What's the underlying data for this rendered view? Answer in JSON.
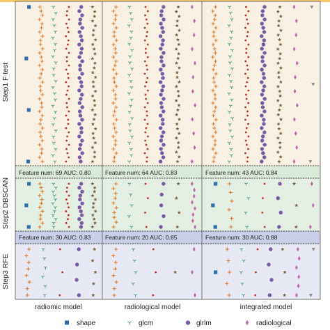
{
  "chart_data": {
    "type": "scatter",
    "layout": "3 steps x 3 models grid of feature strip plots",
    "columns": [
      "radiomic model",
      "radiological model",
      "integrated model"
    ],
    "rows": [
      {
        "label": "Step1  F test",
        "background": "#f8f0e3"
      },
      {
        "label": "Step2  DBSCAN",
        "background": "#e4efe3"
      },
      {
        "label": "Step3  RFE",
        "background": "#e6e8f3"
      }
    ],
    "summaries": [
      [
        "Feature num: 69 AUC: 0.80",
        "Feature num: 64 AUC: 0.83",
        "Feature num: 43 AUC: 0.84"
      ],
      [
        "Feature num: 30 AUC: 0.83",
        "Feature num: 20 AUC: 0.85",
        "Feature num: 30 AUC: 0.88"
      ]
    ],
    "summary_bands": [
      "#d9ead8",
      "#c9cfe8"
    ],
    "legend": [
      {
        "name": "shape",
        "marker": "square",
        "color": "#2f6fb0"
      },
      {
        "name": "glcm",
        "marker": "tri_down",
        "color": "#3a8fa3"
      },
      {
        "name": "glrlm",
        "marker": "circle",
        "color": "#7a5aa6"
      },
      {
        "name": "radiological",
        "marker": "diamond",
        "color": "#c06ab0"
      }
    ],
    "legend_position": "bottom",
    "grid": false,
    "strip_colors": [
      "#2f6fb0",
      "#e07b28",
      "#4a9d7f",
      "#c0392b",
      "#7a5aa6",
      "#7b5e3c",
      "#c06ab0",
      "#8a8a8a"
    ],
    "strip_markers": [
      "square",
      "plus",
      "tri_down",
      "dot",
      "circle",
      "star",
      "diamond",
      "tri_down"
    ],
    "panels": [
      [
        {
          "strips": [
            {
              "type": 0,
              "n": 4
            },
            {
              "type": 1,
              "n": 38
            },
            {
              "type": 2,
              "n": 26
            },
            {
              "type": 3,
              "n": 38
            },
            {
              "type": 4,
              "n": 38
            },
            {
              "type": 5,
              "n": 34
            }
          ]
        },
        {
          "strips": [
            {
              "type": 1,
              "n": 38
            },
            {
              "type": 2,
              "n": 26
            },
            {
              "type": 3,
              "n": 38
            },
            {
              "type": 4,
              "n": 38
            },
            {
              "type": 5,
              "n": 34
            },
            {
              "type": 6,
              "n": 12
            }
          ]
        },
        {
          "strips": [
            {
              "type": 1,
              "n": 38
            },
            {
              "type": 2,
              "n": 26
            },
            {
              "type": 3,
              "n": 38
            },
            {
              "type": 4,
              "n": 38
            },
            {
              "type": 5,
              "n": 34
            },
            {
              "type": 6,
              "n": 12
            },
            {
              "type": 7,
              "n": 3
            }
          ]
        }
      ],
      [
        {
          "strips": [
            {
              "type": 0,
              "n": 3
            },
            {
              "type": 1,
              "n": 12
            },
            {
              "type": 2,
              "n": 12
            },
            {
              "type": 3,
              "n": 12
            },
            {
              "type": 4,
              "n": 12
            },
            {
              "type": 5,
              "n": 12
            }
          ]
        },
        {
          "strips": [
            {
              "type": 1,
              "n": 10
            },
            {
              "type": 2,
              "n": 5
            },
            {
              "type": 3,
              "n": 4
            },
            {
              "type": 4,
              "n": 5
            },
            {
              "type": 5,
              "n": 4
            },
            {
              "type": 6,
              "n": 8
            }
          ]
        },
        {
          "strips": [
            {
              "type": 0,
              "n": 3
            },
            {
              "type": 1,
              "n": 6
            },
            {
              "type": 2,
              "n": 4
            },
            {
              "type": 3,
              "n": 4
            },
            {
              "type": 4,
              "n": 4
            },
            {
              "type": 5,
              "n": 3
            },
            {
              "type": 6,
              "n": 3
            }
          ]
        }
      ],
      [
        {
          "strips": [
            {
              "type": 1,
              "n": 8
            },
            {
              "type": 2,
              "n": 6
            },
            {
              "type": 3,
              "n": 3
            },
            {
              "type": 4,
              "n": 4
            },
            {
              "type": 5,
              "n": 5
            }
          ]
        },
        {
          "strips": [
            {
              "type": 1,
              "n": 8
            },
            {
              "type": 2,
              "n": 5
            },
            {
              "type": 3,
              "n": 3
            },
            {
              "type": 5,
              "n": 1
            },
            {
              "type": 6,
              "n": 3
            }
          ]
        },
        {
          "strips": [
            {
              "type": 0,
              "n": 1
            },
            {
              "type": 1,
              "n": 5
            },
            {
              "type": 2,
              "n": 5
            },
            {
              "type": 3,
              "n": 3
            },
            {
              "type": 4,
              "n": 4
            },
            {
              "type": 5,
              "n": 3
            },
            {
              "type": 6,
              "n": 6
            },
            {
              "type": 7,
              "n": 2
            }
          ]
        }
      ]
    ]
  }
}
